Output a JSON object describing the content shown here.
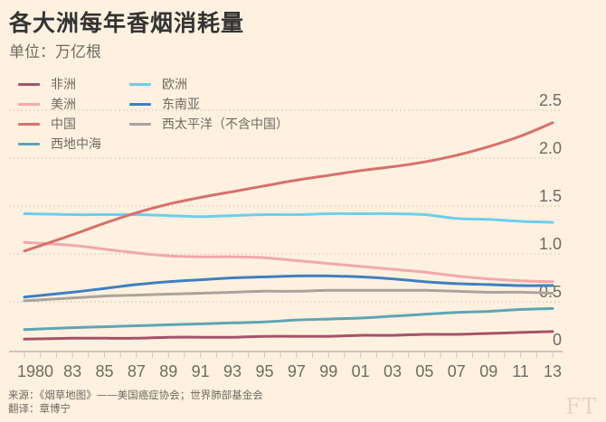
{
  "header": {
    "title": "各大洲每年香烟消耗量",
    "subtitle": "单位：万亿根"
  },
  "footer": {
    "source": "来源：《烟草地图》——美国癌症协会；世界肺部基金会",
    "translator": "翻译：章博宁",
    "logo": "FT"
  },
  "chart_data": {
    "type": "line",
    "title": "各大洲每年香烟消耗量",
    "ylabel": "单位：万亿根",
    "xlabel": "",
    "xlim": [
      1980,
      2013
    ],
    "ylim": [
      0,
      2.5
    ],
    "grid": true,
    "legend_position": "top-left",
    "x_ticks": [
      1980,
      1981,
      1982,
      1983,
      1984,
      1985,
      1986,
      1987,
      1988,
      1989,
      1990,
      1991,
      1992,
      1993,
      1994,
      1995,
      1996,
      1997,
      1998,
      1999,
      2000,
      2001,
      2002,
      2003,
      2004,
      2005,
      2006,
      2007,
      2008,
      2009,
      2010,
      2011,
      2012,
      2013
    ],
    "x_tick_labels": [
      {
        "x": 1980,
        "label": "1980"
      },
      {
        "x": 1983,
        "label": "83"
      },
      {
        "x": 1985,
        "label": "85"
      },
      {
        "x": 1987,
        "label": "87"
      },
      {
        "x": 1989,
        "label": "89"
      },
      {
        "x": 1991,
        "label": "91"
      },
      {
        "x": 1993,
        "label": "93"
      },
      {
        "x": 1995,
        "label": "95"
      },
      {
        "x": 1997,
        "label": "97"
      },
      {
        "x": 1999,
        "label": "99"
      },
      {
        "x": 2001,
        "label": "01"
      },
      {
        "x": 2003,
        "label": "03"
      },
      {
        "x": 2005,
        "label": "05"
      },
      {
        "x": 2007,
        "label": "07"
      },
      {
        "x": 2009,
        "label": "09"
      },
      {
        "x": 2011,
        "label": "11"
      },
      {
        "x": 2013,
        "label": "13"
      }
    ],
    "y_ticks": [
      {
        "y": 0,
        "label": "0"
      },
      {
        "y": 0.5,
        "label": "0.5"
      },
      {
        "y": 1.0,
        "label": "1.0"
      },
      {
        "y": 1.5,
        "label": "1.5"
      },
      {
        "y": 2.0,
        "label": "2.0"
      },
      {
        "y": 2.5,
        "label": "2.5"
      }
    ],
    "x": [
      1980,
      1983,
      1985,
      1987,
      1989,
      1991,
      1993,
      1995,
      1997,
      1999,
      2001,
      2003,
      2005,
      2007,
      2009,
      2011,
      2013
    ],
    "series": [
      {
        "name": "非洲",
        "color": "#a5526a",
        "values": [
          0.11,
          0.12,
          0.12,
          0.12,
          0.13,
          0.13,
          0.13,
          0.14,
          0.14,
          0.14,
          0.15,
          0.15,
          0.16,
          0.16,
          0.17,
          0.18,
          0.19
        ]
      },
      {
        "name": "美洲",
        "color": "#f2a8aa",
        "values": [
          1.12,
          1.09,
          1.05,
          1.01,
          0.98,
          0.97,
          0.97,
          0.96,
          0.93,
          0.9,
          0.87,
          0.84,
          0.81,
          0.77,
          0.74,
          0.72,
          0.71
        ]
      },
      {
        "name": "中国",
        "color": "#d7706c",
        "values": [
          1.03,
          1.2,
          1.32,
          1.43,
          1.52,
          1.59,
          1.65,
          1.71,
          1.77,
          1.82,
          1.87,
          1.91,
          1.96,
          2.03,
          2.12,
          2.23,
          2.37
        ]
      },
      {
        "name": "西地中海",
        "color": "#5ea5b5",
        "values": [
          0.21,
          0.23,
          0.24,
          0.25,
          0.26,
          0.27,
          0.28,
          0.29,
          0.31,
          0.32,
          0.33,
          0.35,
          0.37,
          0.39,
          0.4,
          0.42,
          0.43
        ]
      },
      {
        "name": "欧洲",
        "color": "#6ccfea",
        "values": [
          1.42,
          1.41,
          1.41,
          1.41,
          1.4,
          1.39,
          1.4,
          1.41,
          1.41,
          1.42,
          1.42,
          1.42,
          1.41,
          1.37,
          1.36,
          1.34,
          1.33
        ]
      },
      {
        "name": "东南亚",
        "color": "#3f7fc0",
        "values": [
          0.55,
          0.6,
          0.64,
          0.68,
          0.71,
          0.73,
          0.75,
          0.76,
          0.77,
          0.77,
          0.76,
          0.74,
          0.71,
          0.69,
          0.68,
          0.67,
          0.67
        ]
      },
      {
        "name": "西太平洋（不含中国）",
        "color": "#aba49c",
        "values": [
          0.51,
          0.54,
          0.56,
          0.57,
          0.58,
          0.59,
          0.6,
          0.61,
          0.61,
          0.62,
          0.62,
          0.62,
          0.62,
          0.61,
          0.6,
          0.6,
          0.59
        ]
      }
    ]
  }
}
